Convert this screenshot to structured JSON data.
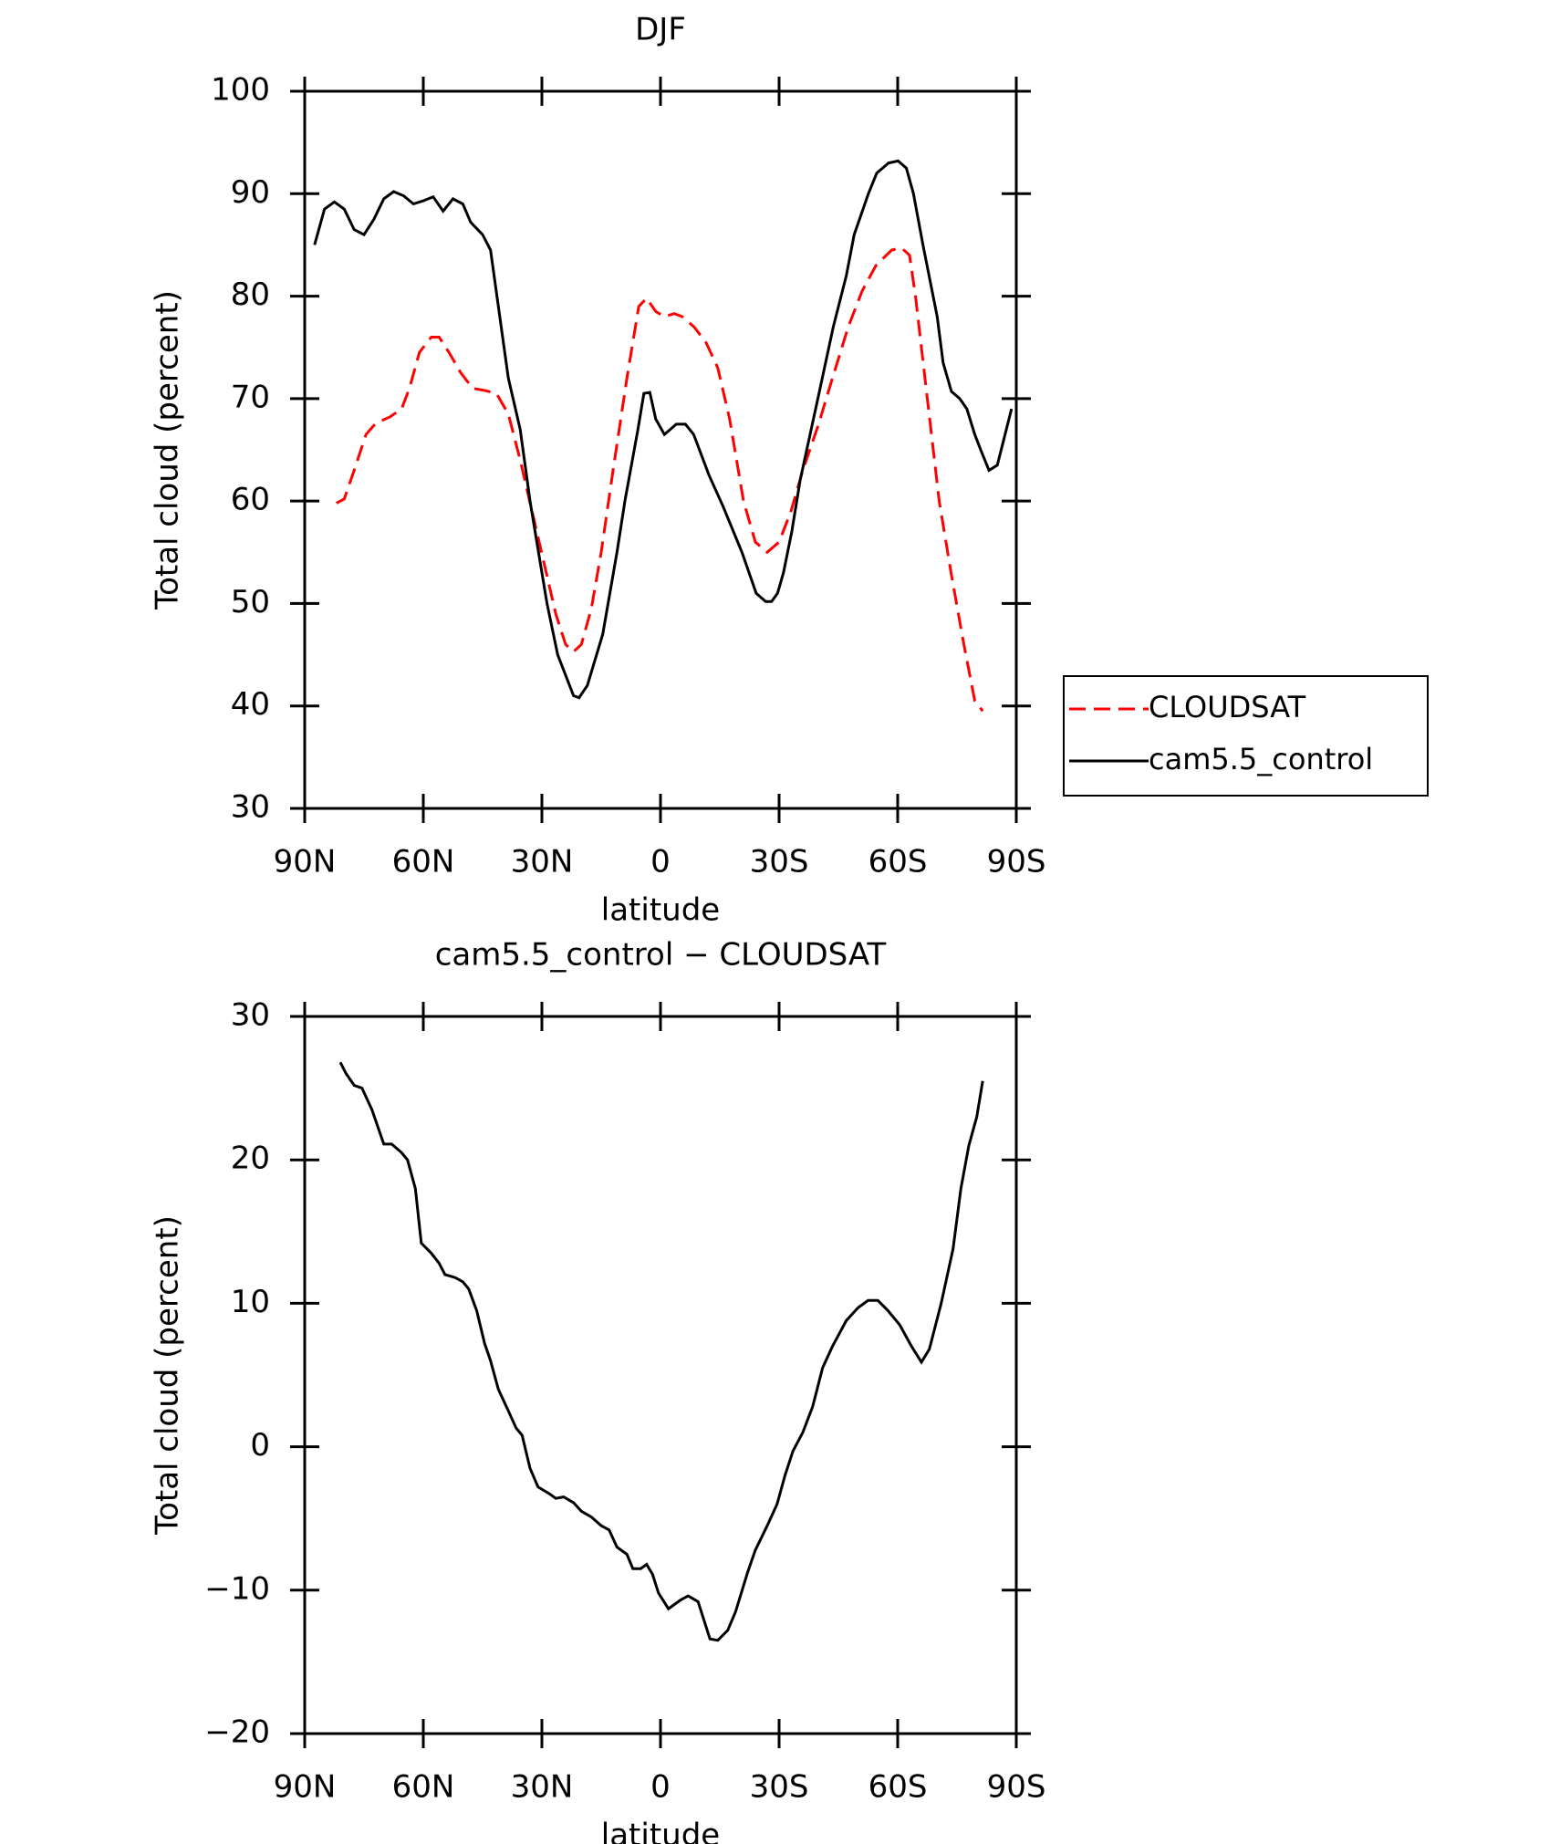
{
  "chart_data": [
    {
      "type": "line",
      "title": "DJF",
      "xlabel": "latitude",
      "ylabel": "Total cloud (percent)",
      "xlim": [
        90,
        -90
      ],
      "xticks": [
        {
          "value": 90,
          "label": "90N"
        },
        {
          "value": 60,
          "label": "60N"
        },
        {
          "value": 30,
          "label": "30N"
        },
        0,
        {
          "value": -30,
          "label": "30S"
        },
        {
          "value": -60,
          "label": "60S"
        },
        {
          "value": -90,
          "label": "90S"
        }
      ],
      "ylim": [
        30,
        100
      ],
      "yticks": [
        30,
        40,
        50,
        60,
        70,
        80,
        90,
        100
      ],
      "legend": "right",
      "series": [
        {
          "name": "CLOUDSAT",
          "color": "#ff0000",
          "line_style": "dashed",
          "x": [
            82,
            80,
            77.5,
            74.5,
            72,
            68.5,
            65.5,
            63.5,
            61,
            58,
            56,
            53.5,
            50.5,
            47.5,
            44.5,
            41.5,
            38.5,
            35.5,
            32.5,
            29.5,
            26.5,
            24,
            22,
            20,
            17.5,
            15,
            12,
            8.5,
            5.5,
            3.5,
            1.2,
            -1,
            -3.5,
            -5.5,
            -8.5,
            -11.5,
            -14.5,
            -17.5,
            -21,
            -24,
            -27,
            -30,
            -33,
            -36,
            -40,
            -43.5,
            -47.5,
            -51,
            -54.5,
            -58.5,
            -61,
            -63,
            -64.5,
            -67.5,
            -70.5,
            -73.5,
            -76.5,
            -79.5,
            -81.5
          ],
          "values": [
            59.8,
            60.2,
            63,
            66.5,
            67.6,
            68.2,
            69,
            71,
            74.5,
            76,
            76,
            74.5,
            72.5,
            71,
            70.8,
            70.5,
            68.5,
            64,
            59,
            54,
            49,
            46,
            45.3,
            46,
            49.5,
            55,
            63,
            72,
            79,
            79.8,
            78.5,
            78,
            78.3,
            78,
            77,
            75.5,
            73,
            68,
            60,
            56,
            55,
            56,
            59,
            63,
            67.5,
            72,
            77,
            80.5,
            83,
            84.5,
            84.7,
            84,
            80,
            70,
            60,
            53,
            46.5,
            40.5,
            39.5
          ]
        },
        {
          "name": "cam5.5_control",
          "color": "#000000",
          "line_style": "solid",
          "x": [
            87.5,
            85,
            82.5,
            80,
            77.5,
            75,
            72.5,
            70,
            67.5,
            65,
            62.5,
            60,
            57.5,
            55,
            52.5,
            50,
            48,
            45,
            43,
            38.5,
            35.5,
            33,
            28.7,
            26,
            22,
            20.6,
            18.5,
            14.6,
            11,
            9,
            5.7,
            4.2,
            2.7,
            1.2,
            -1,
            -4,
            -6.3,
            -8.4,
            -12.3,
            -15.8,
            -20.6,
            -24.2,
            -26.6,
            -28.1,
            -29.6,
            -31.1,
            -33.2,
            -35.3,
            -39.8,
            -43.7,
            -47,
            -49,
            -52.6,
            -54.7,
            -57.7,
            -60.1,
            -62.2,
            -64,
            -66.4,
            -70,
            -71.5,
            -73.6,
            -75.7,
            -77.5,
            -79.5,
            -81,
            -83.1,
            -85.2,
            -88.8
          ],
          "values": [
            85,
            88.5,
            89.2,
            88.5,
            86.5,
            86,
            87.5,
            89.5,
            90.2,
            89.8,
            89,
            89.3,
            89.7,
            88.3,
            89.5,
            89,
            87.2,
            86,
            84.5,
            72,
            67,
            60,
            50,
            45,
            41,
            40.8,
            42,
            47,
            55,
            60,
            67,
            70.5,
            70.6,
            68,
            66.5,
            67.5,
            67.5,
            66.5,
            62.5,
            59.5,
            55,
            51,
            50.2,
            50.2,
            51,
            53,
            57,
            62,
            70,
            77,
            82,
            86,
            90,
            92,
            93,
            93.2,
            92.5,
            90,
            85,
            78,
            73.5,
            70.7,
            70,
            69,
            66.5,
            65,
            63,
            63.5,
            69
          ]
        }
      ]
    },
    {
      "type": "line",
      "title": "cam5.5_control − CLOUDSAT",
      "xlabel": "latitude",
      "ylabel": "Total cloud (percent)",
      "xlim": [
        90,
        -90
      ],
      "xticks": [
        {
          "value": 90,
          "label": "90N"
        },
        {
          "value": 60,
          "label": "60N"
        },
        {
          "value": 30,
          "label": "30N"
        },
        0,
        {
          "value": -30,
          "label": "30S"
        },
        {
          "value": -60,
          "label": "60S"
        },
        {
          "value": -90,
          "label": "90S"
        }
      ],
      "ylim": [
        -20,
        30
      ],
      "yticks": [
        {
          "value": -20,
          "label": "−20"
        },
        {
          "value": -10,
          "label": "−10"
        },
        0,
        10,
        20,
        30
      ],
      "color": "#000000",
      "x": [
        81,
        79.5,
        77.5,
        75.5,
        73,
        70,
        68,
        65.5,
        64,
        62,
        60.5,
        58,
        56,
        54.5,
        52,
        50,
        48.5,
        46.5,
        44.5,
        43,
        41,
        38.5,
        36.5,
        35,
        33,
        31,
        28,
        26.5,
        24.5,
        22,
        20,
        17.5,
        15,
        13,
        11,
        8.5,
        7,
        5,
        3.5,
        2,
        0.5,
        -2,
        -3.5,
        -5,
        -7,
        -9.5,
        -12.5,
        -14.5,
        -17,
        -19,
        -22,
        -24,
        -27,
        -29.5,
        -31.5,
        -33.5,
        -36,
        -38.5,
        -41,
        -43.5,
        -47,
        -50,
        -52.5,
        -55,
        -57.5,
        -60.5,
        -63.5,
        -66,
        -68,
        -71,
        -74,
        -76,
        -78,
        -80,
        -81.5
      ],
      "values": [
        26.8,
        26,
        25.2,
        25,
        23.5,
        21.1,
        21.1,
        20.5,
        20,
        18,
        14.2,
        13.5,
        12.8,
        12,
        11.8,
        11.5,
        11,
        9.5,
        7.2,
        6,
        4,
        2.5,
        1.3,
        0.8,
        -1.5,
        -2.8,
        -3.3,
        -3.6,
        -3.5,
        -3.9,
        -4.5,
        -4.9,
        -5.5,
        -5.8,
        -7,
        -7.5,
        -8.5,
        -8.5,
        -8.2,
        -8.9,
        -10.2,
        -11.3,
        -11,
        -10.7,
        -10.4,
        -10.8,
        -13.4,
        -13.5,
        -12.8,
        -11.5,
        -8.8,
        -7.2,
        -5.5,
        -4,
        -2,
        -0.3,
        1,
        2.8,
        5.5,
        7,
        8.8,
        9.7,
        10.2,
        10.2,
        9.5,
        8.5,
        7,
        5.9,
        6.8,
        10,
        13.8,
        18,
        21,
        23,
        25.5
      ]
    }
  ]
}
